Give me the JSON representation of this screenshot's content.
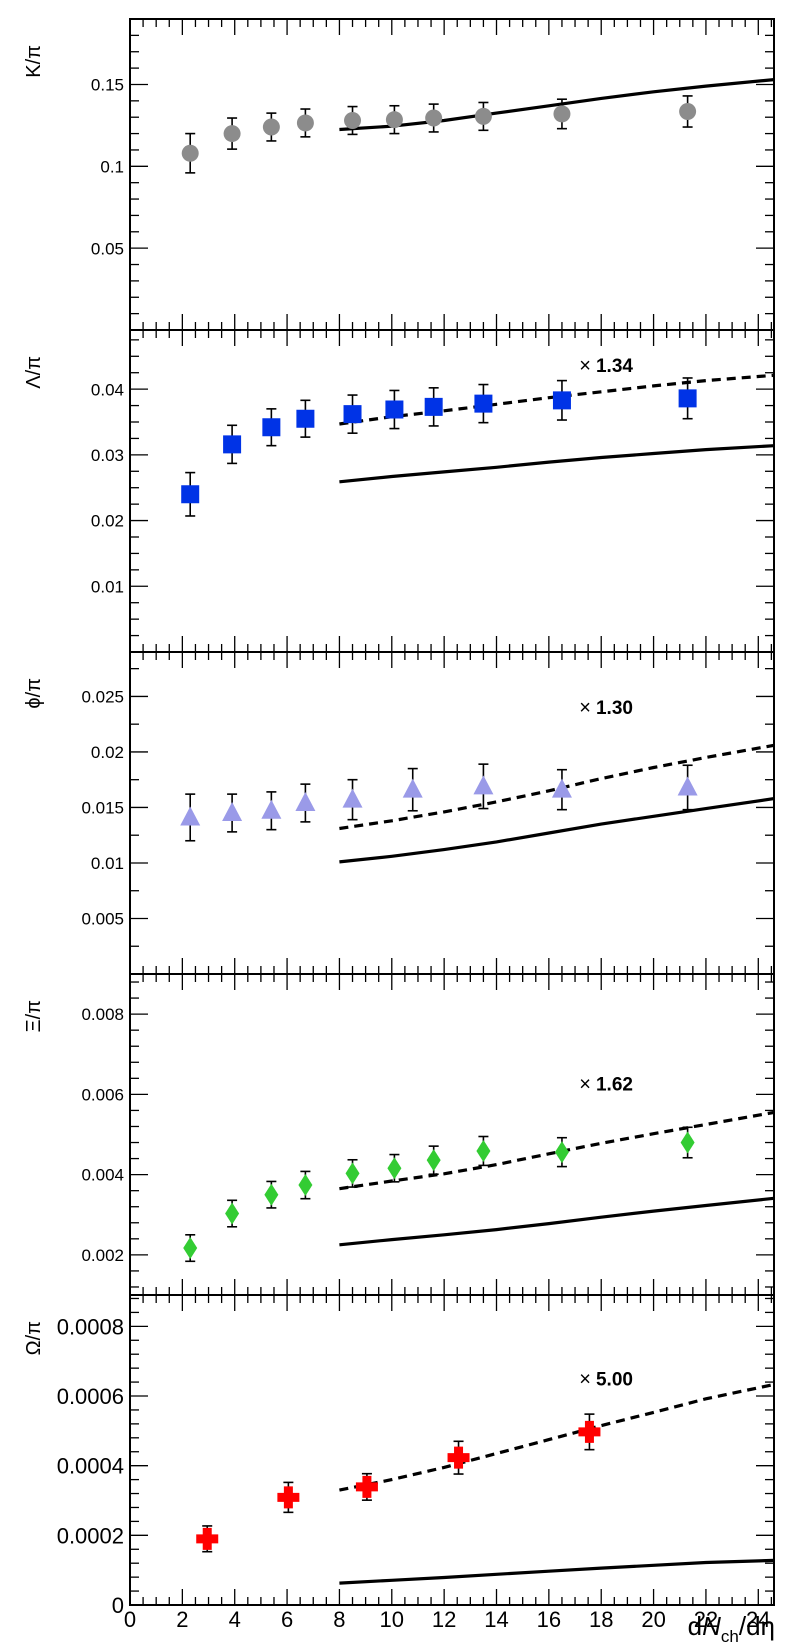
{
  "chart_data": {
    "type": "scatter",
    "xlabel": {
      "pre": "d",
      "N": "N",
      "sub": "ch",
      "post": "/dη"
    },
    "xlim": [
      0,
      24.6
    ],
    "x_ticks": [
      "0",
      "2",
      "4",
      "6",
      "8",
      "10",
      "12",
      "14",
      "16",
      "18",
      "20",
      "22",
      "24"
    ],
    "panels": [
      {
        "ylabel": "K/π",
        "ylim": [
          0,
          0.19
        ],
        "major_ticks": [
          0.05,
          0.1,
          0.15
        ],
        "y_ticks": [
          "0.05",
          "0.1",
          "0.15"
        ],
        "minor_step": 0.01,
        "marker": "circle",
        "color": "#8c8c8c",
        "points": [
          {
            "x": 2.3,
            "y": 0.108,
            "err": 0.012
          },
          {
            "x": 3.9,
            "y": 0.12,
            "err": 0.0095
          },
          {
            "x": 5.4,
            "y": 0.124,
            "err": 0.0085
          },
          {
            "x": 6.7,
            "y": 0.1265,
            "err": 0.0085
          },
          {
            "x": 8.5,
            "y": 0.128,
            "err": 0.0085
          },
          {
            "x": 10.1,
            "y": 0.1285,
            "err": 0.0085
          },
          {
            "x": 11.6,
            "y": 0.1295,
            "err": 0.0085
          },
          {
            "x": 13.5,
            "y": 0.1305,
            "err": 0.0085
          },
          {
            "x": 16.5,
            "y": 0.132,
            "err": 0.009
          },
          {
            "x": 21.3,
            "y": 0.1335,
            "err": 0.0095
          }
        ],
        "solid_line": {
          "x": [
            8,
            10,
            12,
            14,
            16,
            18,
            20,
            22,
            24.6
          ],
          "y": [
            0.1225,
            0.1245,
            0.128,
            0.1325,
            0.137,
            0.1415,
            0.1455,
            0.149,
            0.153
          ]
        }
      },
      {
        "ylabel": "Λ/π",
        "ylim": [
          0,
          0.049
        ],
        "major_ticks": [
          0.01,
          0.02,
          0.03,
          0.04
        ],
        "y_ticks": [
          "0.01",
          "0.02",
          "0.03",
          "0.04"
        ],
        "minor_step": 0.0025,
        "marker": "square",
        "color": "#0033e6",
        "points": [
          {
            "x": 2.3,
            "y": 0.024,
            "err": 0.0033
          },
          {
            "x": 3.9,
            "y": 0.0316,
            "err": 0.0029
          },
          {
            "x": 5.4,
            "y": 0.0342,
            "err": 0.0028
          },
          {
            "x": 6.7,
            "y": 0.0355,
            "err": 0.0028
          },
          {
            "x": 8.5,
            "y": 0.0362,
            "err": 0.0029
          },
          {
            "x": 10.1,
            "y": 0.0369,
            "err": 0.0029
          },
          {
            "x": 11.6,
            "y": 0.0373,
            "err": 0.0029
          },
          {
            "x": 13.5,
            "y": 0.0378,
            "err": 0.0029
          },
          {
            "x": 16.5,
            "y": 0.0383,
            "err": 0.003
          },
          {
            "x": 21.3,
            "y": 0.0386,
            "err": 0.0031
          }
        ],
        "solid_line": {
          "x": [
            8,
            10,
            12,
            14,
            16,
            18,
            20,
            22,
            24.6
          ],
          "y": [
            0.0259,
            0.0267,
            0.0274,
            0.0281,
            0.0289,
            0.0296,
            0.0302,
            0.0308,
            0.0314
          ]
        },
        "dashed_line": {
          "x": [
            8,
            10,
            12,
            14,
            16,
            18,
            20,
            22,
            24.6
          ],
          "y": [
            0.0347,
            0.0358,
            0.0367,
            0.0377,
            0.0387,
            0.0396,
            0.0405,
            0.0413,
            0.0421
          ]
        },
        "scale_factor": "1.34",
        "scale_pos": [
          17.8,
          0.0426
        ]
      },
      {
        "ylabel": "ϕ/π",
        "ylim": [
          0,
          0.029
        ],
        "major_ticks": [
          0.005,
          0.01,
          0.015,
          0.02,
          0.025
        ],
        "y_ticks": [
          "0.005",
          "0.01",
          "0.015",
          "0.02",
          "0.025"
        ],
        "minor_step": 0.0025,
        "marker": "triangle",
        "color": "#9a9ae8",
        "points": [
          {
            "x": 2.3,
            "y": 0.0141,
            "err": 0.0021
          },
          {
            "x": 3.9,
            "y": 0.0145,
            "err": 0.0017
          },
          {
            "x": 5.4,
            "y": 0.0147,
            "err": 0.0017
          },
          {
            "x": 6.7,
            "y": 0.0154,
            "err": 0.0017
          },
          {
            "x": 8.5,
            "y": 0.0157,
            "err": 0.0018
          },
          {
            "x": 10.8,
            "y": 0.0166,
            "err": 0.0019
          },
          {
            "x": 13.5,
            "y": 0.0169,
            "err": 0.002
          },
          {
            "x": 16.5,
            "y": 0.0166,
            "err": 0.0018
          },
          {
            "x": 21.3,
            "y": 0.0168,
            "err": 0.002
          }
        ],
        "solid_line": {
          "x": [
            8,
            10,
            12,
            14,
            16,
            18,
            20,
            22,
            24.6
          ],
          "y": [
            0.0101,
            0.0106,
            0.0112,
            0.0119,
            0.0127,
            0.0135,
            0.0142,
            0.0149,
            0.0158
          ]
        },
        "dashed_line": {
          "x": [
            8,
            10,
            12,
            14,
            16,
            18,
            20,
            22,
            24.6
          ],
          "y": [
            0.0131,
            0.0138,
            0.0146,
            0.0155,
            0.0165,
            0.0176,
            0.0186,
            0.0195,
            0.0206
          ]
        },
        "scale_factor": "1.30",
        "scale_pos": [
          17.8,
          0.0234
        ]
      },
      {
        "ylabel": "Ξ/π",
        "ylim": [
          0.001,
          0.009
        ],
        "major_ticks": [
          0.002,
          0.004,
          0.006,
          0.008
        ],
        "y_ticks": [
          "0.002",
          "0.004",
          "0.006",
          "0.008"
        ],
        "minor_step": 0.0004,
        "marker": "diamond",
        "color": "#33cc33",
        "points": [
          {
            "x": 2.3,
            "y": 0.00217,
            "err": 0.00033
          },
          {
            "x": 3.9,
            "y": 0.00303,
            "err": 0.00033
          },
          {
            "x": 5.4,
            "y": 0.0035,
            "err": 0.00033
          },
          {
            "x": 6.7,
            "y": 0.00374,
            "err": 0.00034
          },
          {
            "x": 8.5,
            "y": 0.00403,
            "err": 0.00034
          },
          {
            "x": 10.1,
            "y": 0.00416,
            "err": 0.00034
          },
          {
            "x": 11.6,
            "y": 0.00436,
            "err": 0.00035
          },
          {
            "x": 13.5,
            "y": 0.00459,
            "err": 0.00036
          },
          {
            "x": 16.5,
            "y": 0.00456,
            "err": 0.00036
          },
          {
            "x": 21.3,
            "y": 0.0048,
            "err": 0.00038
          }
        ],
        "solid_line": {
          "x": [
            8,
            10,
            12,
            14,
            16,
            18,
            20,
            22,
            24.6
          ],
          "y": [
            0.00225,
            0.00238,
            0.0025,
            0.00263,
            0.00278,
            0.00294,
            0.00309,
            0.00323,
            0.00341
          ]
        },
        "dashed_line": {
          "x": [
            8,
            10,
            12,
            14,
            16,
            18,
            20,
            22,
            24.6
          ],
          "y": [
            0.00365,
            0.00384,
            0.00402,
            0.00425,
            0.00452,
            0.00478,
            0.00502,
            0.00525,
            0.00555
          ]
        },
        "scale_factor": "1.62",
        "scale_pos": [
          17.8,
          0.0061
        ]
      },
      {
        "ylabel": "Ω/π",
        "ylim": [
          0,
          0.00089
        ],
        "major_ticks": [
          0,
          0.0002,
          0.0004,
          0.0006,
          0.0008
        ],
        "y_ticks": [
          "0",
          "0.0002",
          "0.0004",
          "0.0006",
          "0.0008"
        ],
        "minor_step": 4e-05,
        "marker": "cross",
        "color": "#ff0000",
        "points": [
          {
            "x": 2.95,
            "y": 0.00019,
            "err": 3.7e-05
          },
          {
            "x": 6.05,
            "y": 0.000309,
            "err": 4.3e-05
          },
          {
            "x": 9.05,
            "y": 0.000339,
            "err": 3.8e-05
          },
          {
            "x": 12.55,
            "y": 0.000423,
            "err": 4.7e-05
          },
          {
            "x": 17.55,
            "y": 0.000497,
            "err": 5.1e-05
          }
        ],
        "solid_line": {
          "x": [
            8,
            10,
            12,
            14,
            16,
            18,
            20,
            22,
            24.6
          ],
          "y": [
            6.3e-05,
            7.1e-05,
            7.9e-05,
            8.8e-05,
            9.7e-05,
            0.000106,
            0.000114,
            0.000122,
            0.000128
          ]
        },
        "dashed_line": {
          "x": [
            8,
            10,
            12,
            14,
            16,
            18,
            20,
            22,
            24.6
          ],
          "y": [
            0.00033,
            0.00036,
            0.000395,
            0.000435,
            0.000475,
            0.000515,
            0.000553,
            0.000592,
            0.000633
          ]
        },
        "scale_factor": "5.00",
        "scale_pos": [
          17.8,
          0.00063
        ]
      }
    ]
  }
}
